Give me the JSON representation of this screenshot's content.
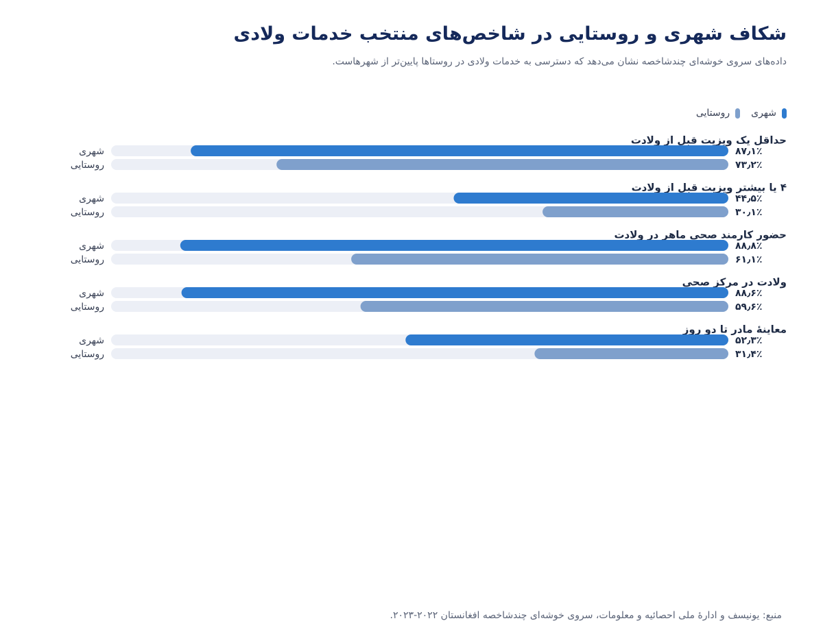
{
  "title": "شکاف شهری و روستایی در شاخص‌های منتخب خدمات ولادی",
  "subtitle": "داده‌های سروی خوشه‌ای چندشاخصه نشان می‌دهد که دسترسی به خدمات ولادی در روستاها پایین‌تر از شهرهاست.",
  "source": "منبع: یونیسف و ادارهٔ ملی احصائیه و معلومات، سروی خوشه‌ای چندشاخصه افغانستان ۲۰۲۲-۲۰۲۳.",
  "legend": {
    "urban": "شهری",
    "rural": "روستایی"
  },
  "colors": {
    "urban": "#2e7bcf",
    "rural": "#7fa0cc",
    "track": "#eceff6"
  },
  "chart_data": {
    "type": "bar",
    "orientation": "horizontal",
    "direction": "rtl",
    "xlim": [
      0,
      100
    ],
    "categories": [
      "حداقل یک ویزیت قبل از ولادت",
      "۴ یا بیشتر ویزیت قبل از ولادت",
      "حضور کارمند صحی ماهر در ولادت",
      "ولادت در مرکز صحی",
      "معاینهٔ مادر تا دو روز"
    ],
    "series": [
      {
        "name": "شهری",
        "values": [
          87.1,
          44.5,
          88.8,
          88.6,
          52.3
        ],
        "labels": [
          "۸۷٫۱٪",
          "۴۴٫۵٪",
          "۸۸٫۸٪",
          "۸۸٫۶٪",
          "۵۲٫۳٪"
        ]
      },
      {
        "name": "روستایی",
        "values": [
          73.2,
          30.1,
          61.1,
          59.6,
          31.4
        ],
        "labels": [
          "۷۳٫۲٪",
          "۳۰٫۱٪",
          "۶۱٫۱٪",
          "۵۹٫۶٪",
          "۳۱٫۴٪"
        ]
      }
    ]
  }
}
